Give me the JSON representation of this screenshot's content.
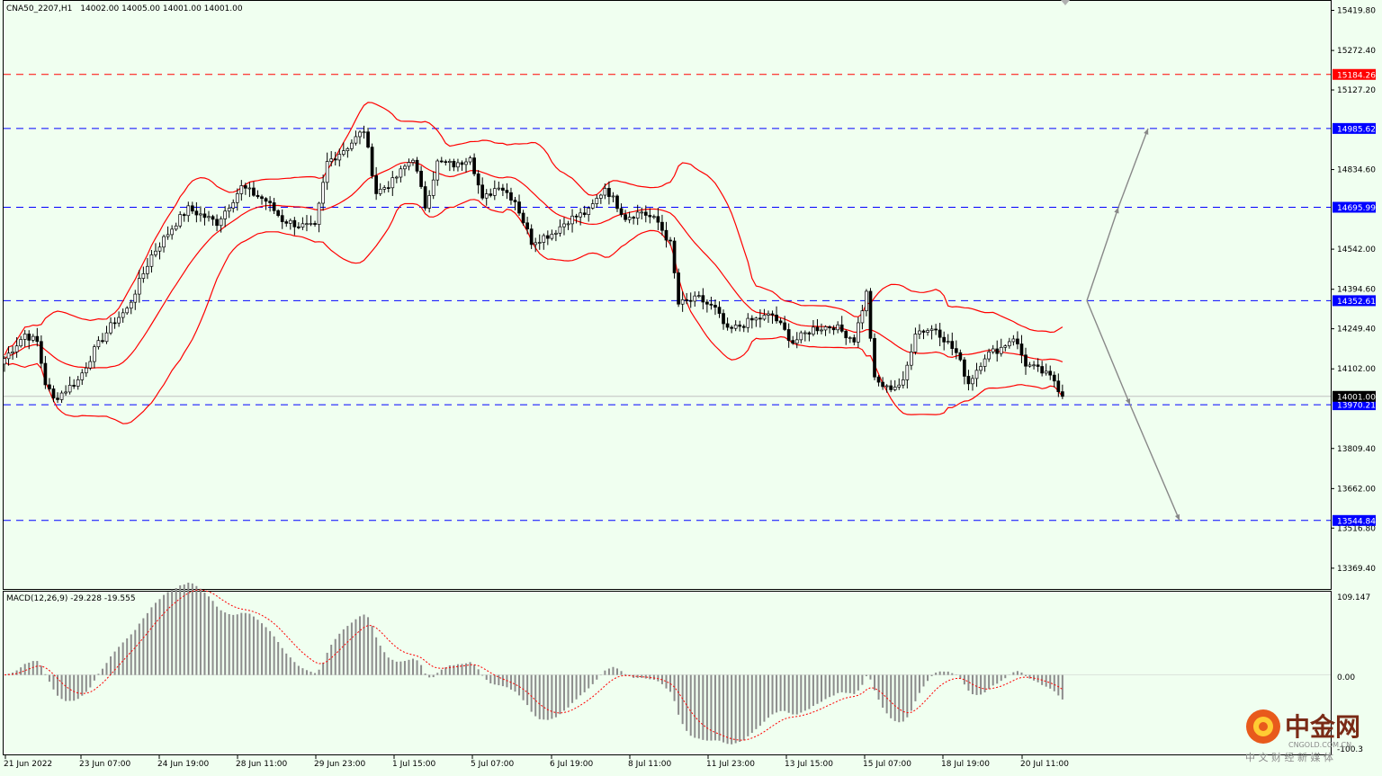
{
  "header": {
    "symbol": "CNA50_2207,H1",
    "ohlc": "14002.00 14005.00 14001.00 14001.00"
  },
  "macd": {
    "label": "MACD(12,26,9) -29.228 -19.555",
    "scale_top": "109.147",
    "scale_zero": "0.00",
    "scale_bottom": "-100.3",
    "ylim": [
      -100.3,
      109.147
    ]
  },
  "price_axis": {
    "ylim": [
      13250,
      15480
    ],
    "ticks": [
      "15419.80",
      "15272.40",
      "15127.20",
      "14834.60",
      "14542.00",
      "14394.60",
      "14249.40",
      "14102.00",
      "13809.40",
      "13662.00",
      "13516.80",
      "13369.40"
    ]
  },
  "levels": [
    {
      "value": "15184.26",
      "color": "#ff0000",
      "style": "red"
    },
    {
      "value": "14985.62",
      "color": "#0000ff",
      "style": "blue"
    },
    {
      "value": "14695.99",
      "color": "#0000ff",
      "style": "blue"
    },
    {
      "value": "14352.61",
      "color": "#0000ff",
      "style": "blue"
    },
    {
      "value": "13970.21",
      "color": "#0000ff",
      "style": "blue"
    },
    {
      "value": "13544.84",
      "color": "#0000ff",
      "style": "blue"
    }
  ],
  "current_price": "14001.00",
  "time_axis": [
    "21 Jun 2022",
    "23 Jun 07:00",
    "24 Jun 19:00",
    "28 Jun 11:00",
    "29 Jun 23:00",
    "1 Jul 15:00",
    "5 Jul 07:00",
    "6 Jul 19:00",
    "8 Jul 11:00",
    "11 Jul 23:00",
    "13 Jul 15:00",
    "15 Jul 07:00",
    "18 Jul 19:00",
    "20 Jul 11:00"
  ],
  "watermark": {
    "title": "中金网",
    "url": "CNGOLD.COM.CN",
    "sub": "中 文 财 经 新 媒 体"
  },
  "chart_data": {
    "type": "candlestick",
    "bars": 260,
    "close_path": [
      [
        0,
        14140
      ],
      [
        5,
        14230
      ],
      [
        8,
        14200
      ],
      [
        10,
        14050
      ],
      [
        12,
        13990
      ],
      [
        18,
        14060
      ],
      [
        22,
        14170
      ],
      [
        27,
        14280
      ],
      [
        30,
        14320
      ],
      [
        36,
        14520
      ],
      [
        42,
        14640
      ],
      [
        45,
        14690
      ],
      [
        52,
        14640
      ],
      [
        58,
        14770
      ],
      [
        64,
        14720
      ],
      [
        68,
        14650
      ],
      [
        72,
        14630
      ],
      [
        76,
        14620
      ],
      [
        79,
        14860
      ],
      [
        84,
        14920
      ],
      [
        88,
        14980
      ],
      [
        91,
        14750
      ],
      [
        95,
        14790
      ],
      [
        100,
        14880
      ],
      [
        103,
        14700
      ],
      [
        106,
        14860
      ],
      [
        111,
        14850
      ],
      [
        114,
        14890
      ],
      [
        117,
        14720
      ],
      [
        121,
        14780
      ],
      [
        125,
        14720
      ],
      [
        129,
        14570
      ],
      [
        134,
        14600
      ],
      [
        138,
        14650
      ],
      [
        143,
        14680
      ],
      [
        147,
        14770
      ],
      [
        152,
        14660
      ],
      [
        156,
        14680
      ],
      [
        160,
        14640
      ],
      [
        163,
        14560
      ],
      [
        165,
        14340
      ],
      [
        170,
        14360
      ],
      [
        174,
        14320
      ],
      [
        177,
        14240
      ],
      [
        183,
        14280
      ],
      [
        188,
        14300
      ],
      [
        193,
        14200
      ],
      [
        198,
        14250
      ],
      [
        203,
        14260
      ],
      [
        208,
        14210
      ],
      [
        211,
        14380
      ],
      [
        213,
        14060
      ],
      [
        216,
        14030
      ],
      [
        220,
        14050
      ],
      [
        223,
        14240
      ],
      [
        228,
        14250
      ],
      [
        233,
        14160
      ],
      [
        236,
        14050
      ],
      [
        240,
        14150
      ],
      [
        244,
        14180
      ],
      [
        247,
        14220
      ],
      [
        250,
        14120
      ],
      [
        254,
        14090
      ],
      [
        257,
        14060
      ],
      [
        259,
        14001
      ]
    ],
    "bollinger": {
      "period": 20,
      "deviation": 2
    },
    "macd": {
      "fast": 12,
      "slow": 26,
      "signal": 9,
      "value": -29.228,
      "signal_value": -19.555
    },
    "forecast_arrows": [
      {
        "from": 14352.61,
        "to": 14695.99
      },
      {
        "from": 14695.99,
        "to": 14985.62
      },
      {
        "from": 14352.61,
        "to": 13970.21
      },
      {
        "from": 13970.21,
        "to": 13544.84
      }
    ]
  }
}
